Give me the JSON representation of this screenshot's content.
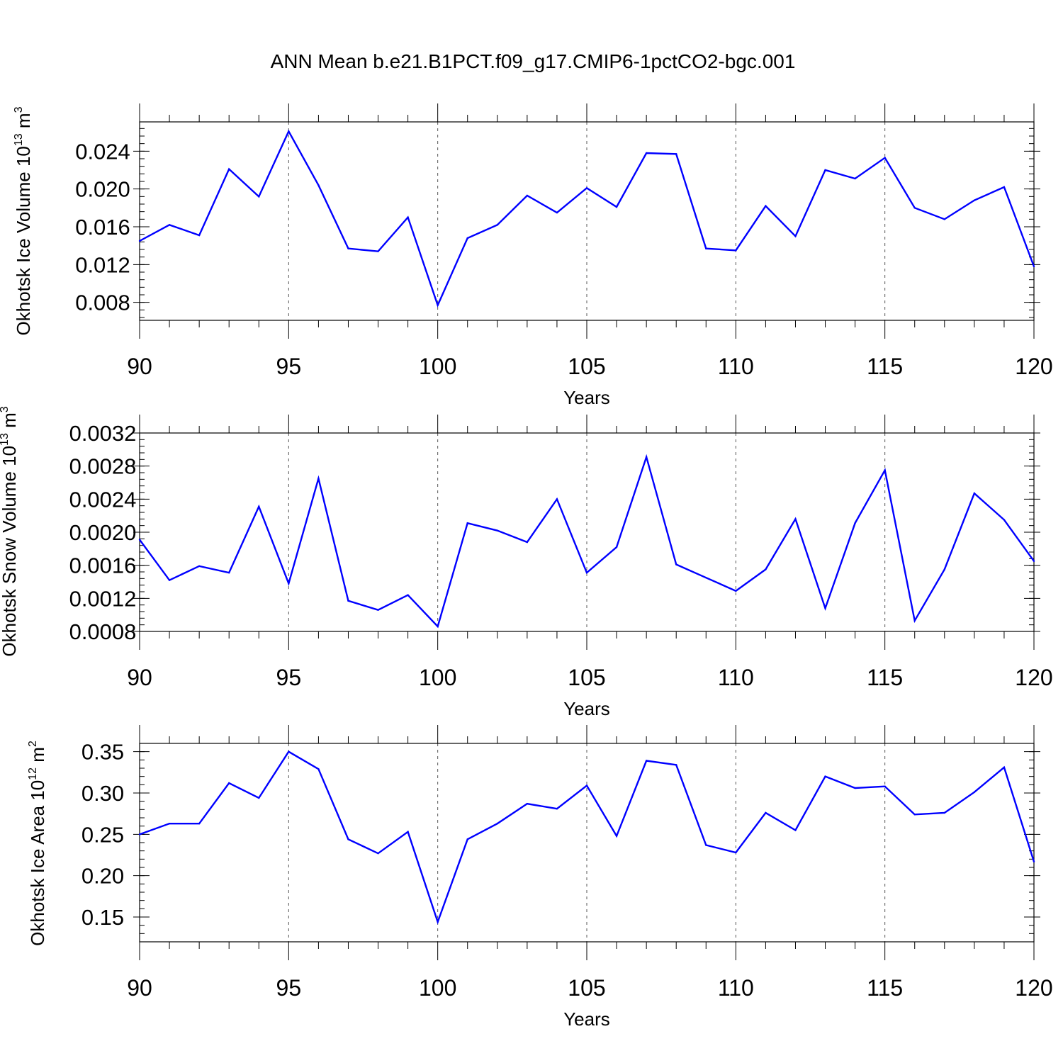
{
  "title": "ANN Mean b.e21.B1PCT.f09_g17.CMIP6-1pctCO2-bgc.001",
  "colors": {
    "series": "#0000ff",
    "axes": "#000000",
    "grid": "#555555"
  },
  "chart_data": [
    {
      "type": "line",
      "xlabel": "Years",
      "ylabel": {
        "text": "Okhotsk Ice Volume 10",
        "sup": "13",
        "unit": " m",
        "unit_sup": "3"
      },
      "xlim": [
        90,
        120
      ],
      "ylim": [
        0.0061,
        0.0271
      ],
      "xticks": [
        90,
        95,
        100,
        105,
        110,
        115,
        120
      ],
      "xtick_labels": [
        "90",
        "95",
        "100",
        "105",
        "110",
        "115",
        "120"
      ],
      "yticks": [
        0.008,
        0.012,
        0.016,
        0.02,
        0.024
      ],
      "ytick_labels": [
        "0.008",
        "0.012",
        "0.016",
        "0.020",
        "0.024"
      ],
      "yminor_step": 0.0008,
      "grid": "vertical dashed at major x ticks",
      "x": [
        90,
        91,
        92,
        93,
        94,
        95,
        96,
        97,
        98,
        99,
        100,
        101,
        102,
        103,
        104,
        105,
        106,
        107,
        108,
        109,
        110,
        111,
        112,
        113,
        114,
        115,
        116,
        117,
        118,
        119,
        120
      ],
      "series": [
        {
          "values": [
            0.0145,
            0.0162,
            0.0151,
            0.0221,
            0.0192,
            0.0261,
            0.0204,
            0.0137,
            0.0134,
            0.017,
            0.0077,
            0.0148,
            0.0162,
            0.0193,
            0.0175,
            0.0201,
            0.0181,
            0.0238,
            0.0237,
            0.0137,
            0.0135,
            0.0182,
            0.015,
            0.022,
            0.0211,
            0.0233,
            0.018,
            0.0168,
            0.0188,
            0.0202,
            0.0118
          ]
        }
      ]
    },
    {
      "type": "line",
      "xlabel": "Years",
      "ylabel": {
        "text": "Okhotsk Snow Volume 10",
        "sup": "13",
        "unit": " m",
        "unit_sup": "3"
      },
      "xlim": [
        90,
        120
      ],
      "ylim": [
        0.0008,
        0.0032
      ],
      "xticks": [
        90,
        95,
        100,
        105,
        110,
        115,
        120
      ],
      "xtick_labels": [
        "90",
        "95",
        "100",
        "105",
        "110",
        "115",
        "120"
      ],
      "yticks": [
        0.0008,
        0.0012,
        0.0016,
        0.002,
        0.0024,
        0.0028,
        0.0032
      ],
      "ytick_labels": [
        "0.0008",
        "0.0012",
        "0.0016",
        "0.0020",
        "0.0024",
        "0.0028",
        "0.0032"
      ],
      "yminor_step": 8e-05,
      "grid": "vertical dashed at major x ticks",
      "x": [
        90,
        91,
        92,
        93,
        94,
        95,
        96,
        97,
        98,
        99,
        100,
        101,
        102,
        103,
        104,
        105,
        106,
        107,
        108,
        109,
        110,
        111,
        112,
        113,
        114,
        115,
        116,
        117,
        118,
        119,
        120
      ],
      "series": [
        {
          "values": [
            0.00191,
            0.00142,
            0.00159,
            0.00151,
            0.00231,
            0.00138,
            0.00265,
            0.00117,
            0.00106,
            0.00124,
            0.00086,
            0.00211,
            0.00202,
            0.00188,
            0.0024,
            0.00151,
            0.00182,
            0.00291,
            0.00161,
            0.00145,
            0.00129,
            0.00155,
            0.00216,
            0.00108,
            0.00211,
            0.00275,
            0.00093,
            0.00155,
            0.00247,
            0.00215,
            0.00165
          ]
        }
      ]
    },
    {
      "type": "line",
      "xlabel": "Years",
      "ylabel": {
        "text": "Okhotsk Ice Area 10",
        "sup": "12",
        "unit": " m",
        "unit_sup": "2"
      },
      "xlim": [
        90,
        120
      ],
      "ylim": [
        0.12,
        0.36
      ],
      "xticks": [
        90,
        95,
        100,
        105,
        110,
        115,
        120
      ],
      "xtick_labels": [
        "90",
        "95",
        "100",
        "105",
        "110",
        "115",
        "120"
      ],
      "yticks": [
        0.15,
        0.2,
        0.25,
        0.3,
        0.35
      ],
      "ytick_labels": [
        "0.15",
        "0.20",
        "0.25",
        "0.30",
        "0.35"
      ],
      "yminor_step": 0.01,
      "grid": "vertical dashed at major x ticks",
      "x": [
        90,
        91,
        92,
        93,
        94,
        95,
        96,
        97,
        98,
        99,
        100,
        101,
        102,
        103,
        104,
        105,
        106,
        107,
        108,
        109,
        110,
        111,
        112,
        113,
        114,
        115,
        116,
        117,
        118,
        119,
        120
      ],
      "series": [
        {
          "values": [
            0.25,
            0.263,
            0.263,
            0.312,
            0.294,
            0.35,
            0.329,
            0.244,
            0.227,
            0.253,
            0.144,
            0.244,
            0.263,
            0.287,
            0.281,
            0.309,
            0.248,
            0.339,
            0.334,
            0.237,
            0.228,
            0.276,
            0.255,
            0.32,
            0.306,
            0.308,
            0.274,
            0.276,
            0.301,
            0.331,
            0.217
          ]
        }
      ]
    }
  ]
}
